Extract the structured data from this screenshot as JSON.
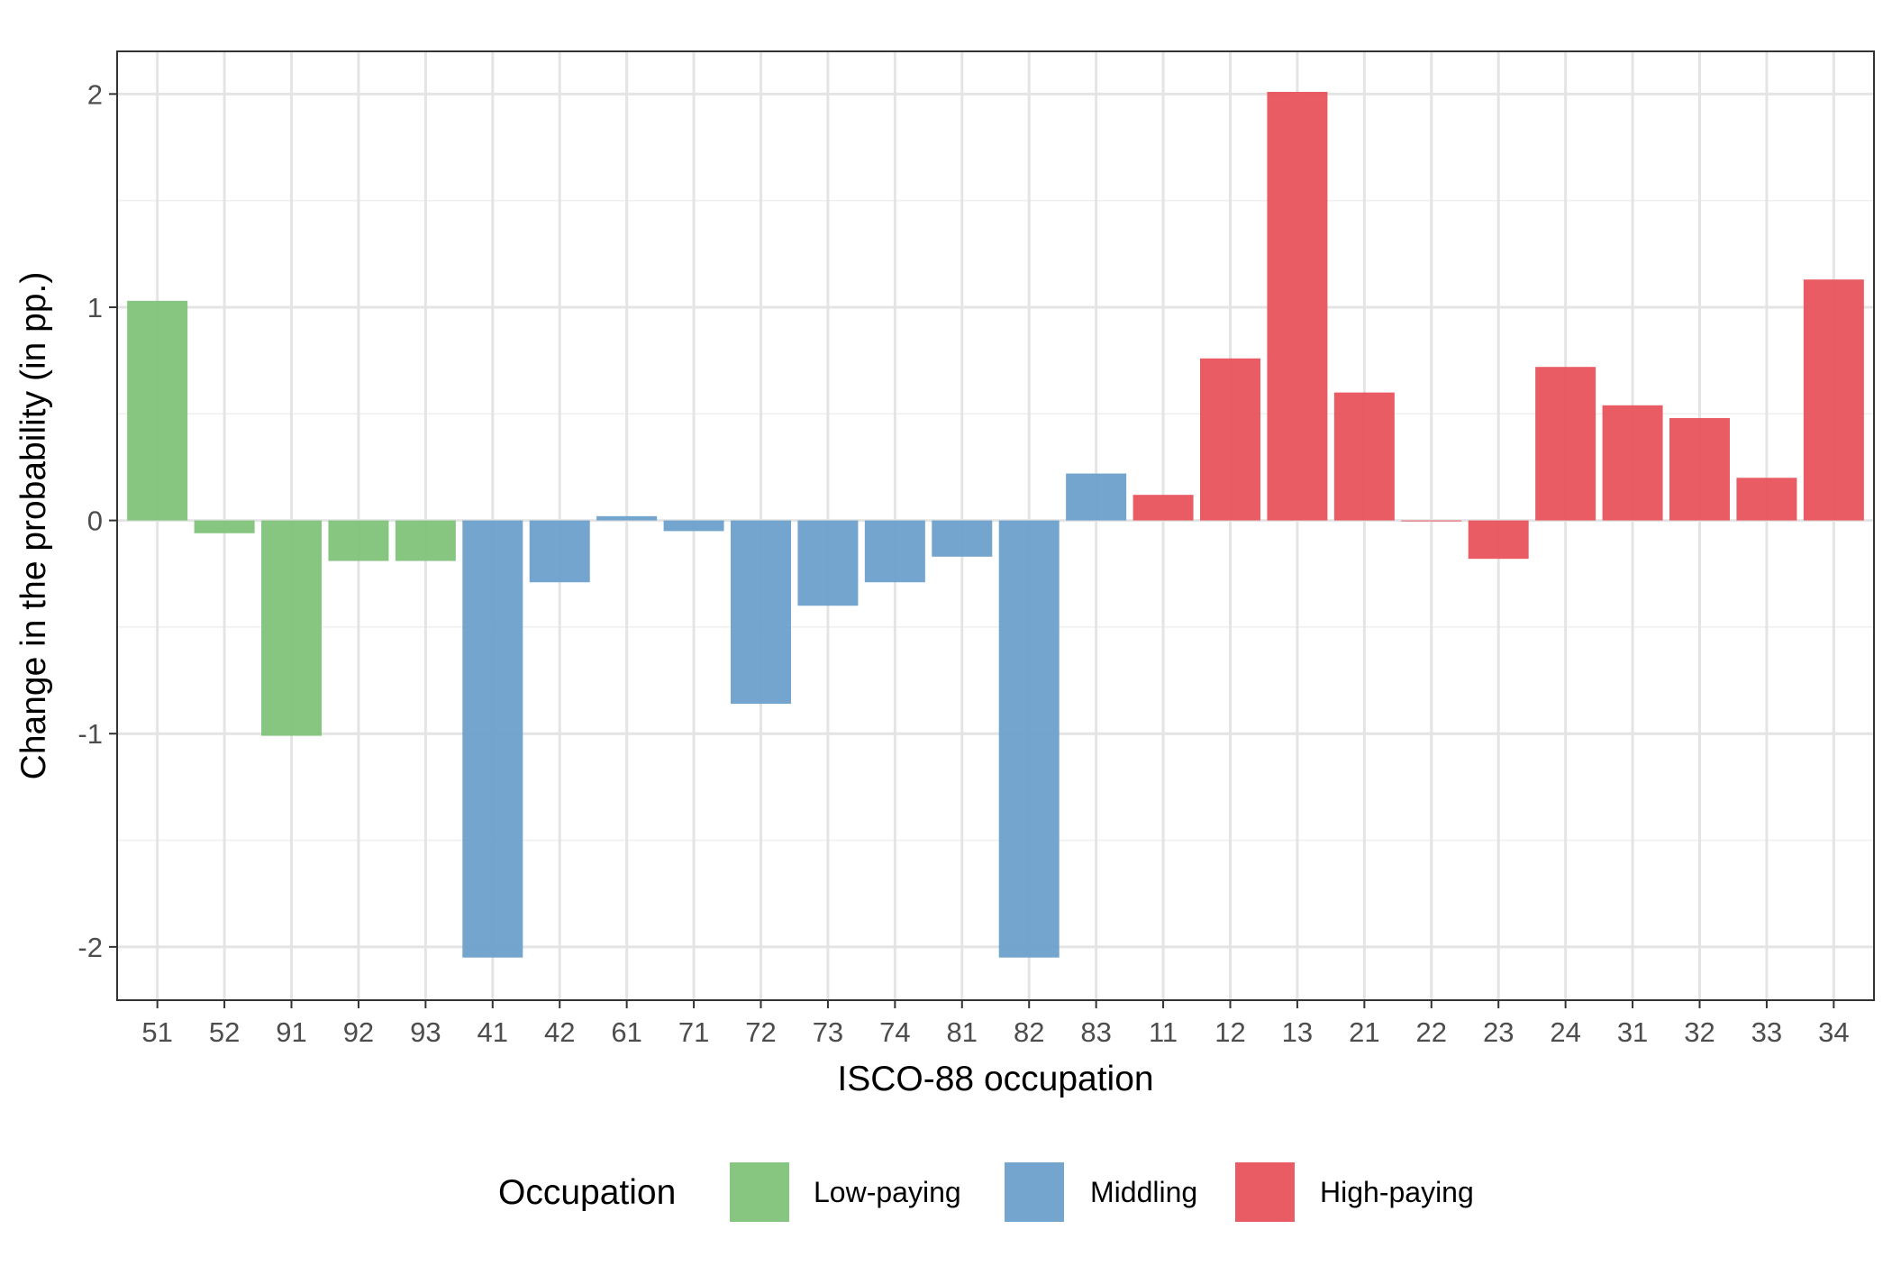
{
  "chart_data": {
    "type": "bar",
    "title": "",
    "xlabel": "ISCO-88 occupation",
    "ylabel": "Change in the probability (in pp.)",
    "ylim": [
      -2.25,
      2.2
    ],
    "yticks": [
      -2,
      -1,
      0,
      1,
      2
    ],
    "ytick_labels": [
      "-2",
      "-1",
      "0",
      "1",
      "2"
    ],
    "grid": true,
    "legend": {
      "title": "Occupation",
      "position": "bottom",
      "entries": [
        {
          "group": "low",
          "label": "Low-paying",
          "color": "#7ec278"
        },
        {
          "group": "middling",
          "label": "Middling",
          "color": "#6a9fcb"
        },
        {
          "group": "high",
          "label": "High-paying",
          "color": "#e8525a"
        }
      ]
    },
    "categories": [
      "51",
      "52",
      "91",
      "92",
      "93",
      "41",
      "42",
      "61",
      "71",
      "72",
      "73",
      "74",
      "81",
      "82",
      "83",
      "11",
      "12",
      "13",
      "21",
      "22",
      "23",
      "24",
      "31",
      "32",
      "33",
      "34"
    ],
    "groups": [
      "low",
      "low",
      "low",
      "low",
      "low",
      "middling",
      "middling",
      "middling",
      "middling",
      "middling",
      "middling",
      "middling",
      "middling",
      "middling",
      "middling",
      "high",
      "high",
      "high",
      "high",
      "high",
      "high",
      "high",
      "high",
      "high",
      "high",
      "high"
    ],
    "values": [
      1.03,
      -0.06,
      -1.01,
      -0.19,
      -0.19,
      -2.05,
      -0.29,
      0.02,
      -0.05,
      -0.86,
      -0.4,
      -0.29,
      -0.17,
      -2.05,
      0.22,
      0.12,
      0.76,
      2.01,
      0.6,
      0.0,
      -0.18,
      0.72,
      0.54,
      0.48,
      0.2,
      1.13
    ]
  }
}
